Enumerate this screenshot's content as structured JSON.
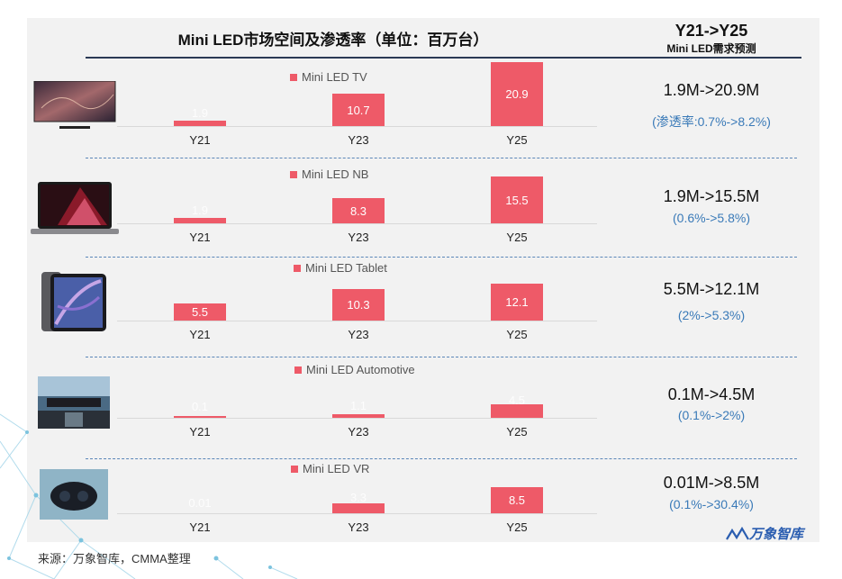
{
  "header": {
    "title": "Mini LED市场空间及渗透率（单位：百万台）",
    "right_title": "Y21->Y25",
    "right_subtitle": "Mini LED需求预测"
  },
  "chart_data": [
    {
      "type": "bar",
      "series": [
        {
          "name": "Mini LED TV",
          "values": [
            1.9,
            10.7,
            20.9
          ]
        }
      ],
      "categories": [
        "Y21",
        "Y23",
        "Y25"
      ],
      "data_labels": [
        "1.9",
        "10.7",
        "20.9"
      ]
    },
    {
      "type": "bar",
      "series": [
        {
          "name": "Mini LED NB",
          "values": [
            1.9,
            8.3,
            15.5
          ]
        }
      ],
      "categories": [
        "Y21",
        "Y23",
        "Y25"
      ],
      "data_labels": [
        "1.9",
        "8.3",
        "15.5"
      ]
    },
    {
      "type": "bar",
      "series": [
        {
          "name": "Mini LED Tablet",
          "values": [
            5.5,
            10.3,
            12.1
          ]
        }
      ],
      "categories": [
        "Y21",
        "Y23",
        "Y25"
      ],
      "data_labels": [
        "5.5",
        "10.3",
        "12.1"
      ]
    },
    {
      "type": "bar",
      "series": [
        {
          "name": "Mini LED Automotive",
          "values": [
            0.1,
            1.1,
            4.5
          ]
        }
      ],
      "categories": [
        "Y21",
        "Y23",
        "Y25"
      ],
      "data_labels": [
        "0.1",
        "1.1",
        "4.5"
      ]
    },
    {
      "type": "bar",
      "series": [
        {
          "name": "Mini LED VR",
          "values": [
            0.01,
            3.3,
            8.5
          ]
        }
      ],
      "categories": [
        "Y21",
        "Y23",
        "Y25"
      ],
      "data_labels": [
        "0.01",
        "3.3",
        "8.5"
      ]
    }
  ],
  "forecast": [
    {
      "range": "1.9M->20.9M",
      "penetration": "(渗透率:0.7%->8.2%)"
    },
    {
      "range": "1.9M->15.5M",
      "penetration": "(0.6%->5.8%)"
    },
    {
      "range": "5.5M->12.1M",
      "penetration": "(2%->5.3%)"
    },
    {
      "range": "0.1M->4.5M",
      "penetration": "(0.1%->2%)"
    },
    {
      "range": "0.01M->8.5M",
      "penetration": "(0.1%->30.4%)"
    }
  ],
  "footer": {
    "source": "来源：万象智库，CMMA整理",
    "brand": "万象智库"
  },
  "colors": {
    "bar": "#ee5a68",
    "accent": "#3a7ab8",
    "brand": "#2a5db0"
  }
}
